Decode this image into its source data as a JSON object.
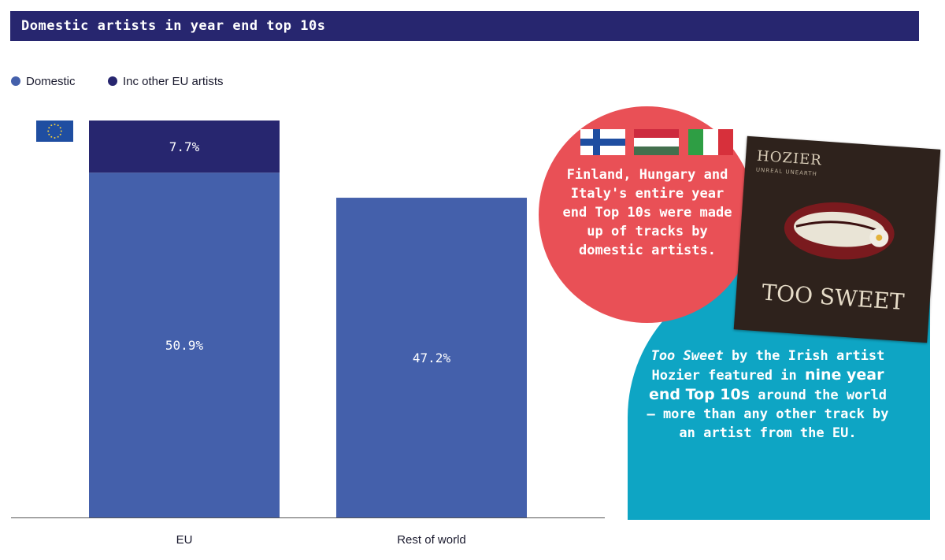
{
  "header": {
    "title": "Domestic artists in year end top 10s"
  },
  "legend": [
    {
      "label": "Domestic",
      "color": "#4460ab"
    },
    {
      "label": "Inc other EU artists",
      "color": "#27266f"
    }
  ],
  "chart_data": {
    "type": "bar",
    "stacked": true,
    "categories": [
      "EU",
      "Rest of world"
    ],
    "series": [
      {
        "name": "Domestic",
        "values": [
          50.9,
          47.2
        ],
        "labels": [
          "50.9%",
          "47.2%"
        ],
        "color": "#4460ab"
      },
      {
        "name": "Inc other EU artists",
        "values": [
          7.7,
          null
        ],
        "labels": [
          "7.7%",
          ""
        ],
        "color": "#27266f"
      }
    ],
    "ylim": [
      0,
      58.6
    ],
    "grid": false,
    "legend_position": "top-left"
  },
  "callouts": {
    "red": {
      "text": "Finland, Hungary and Italy's entire year end Top 10s were made up of tracks by domestic artists.",
      "flags": [
        "finland-flag",
        "hungary-flag",
        "italy-flag"
      ]
    },
    "blue": {
      "title_italic": "Too Sweet",
      "text_1": " by the Irish artist Hozier featured in ",
      "highlight": "nine year end Top 10s",
      "text_2": " around the world – more than any other track by an artist  from the EU."
    }
  },
  "album": {
    "artist": "HOZIER",
    "subtitle": "UNREAL UNEARTH",
    "title": "TOO SWEET"
  }
}
